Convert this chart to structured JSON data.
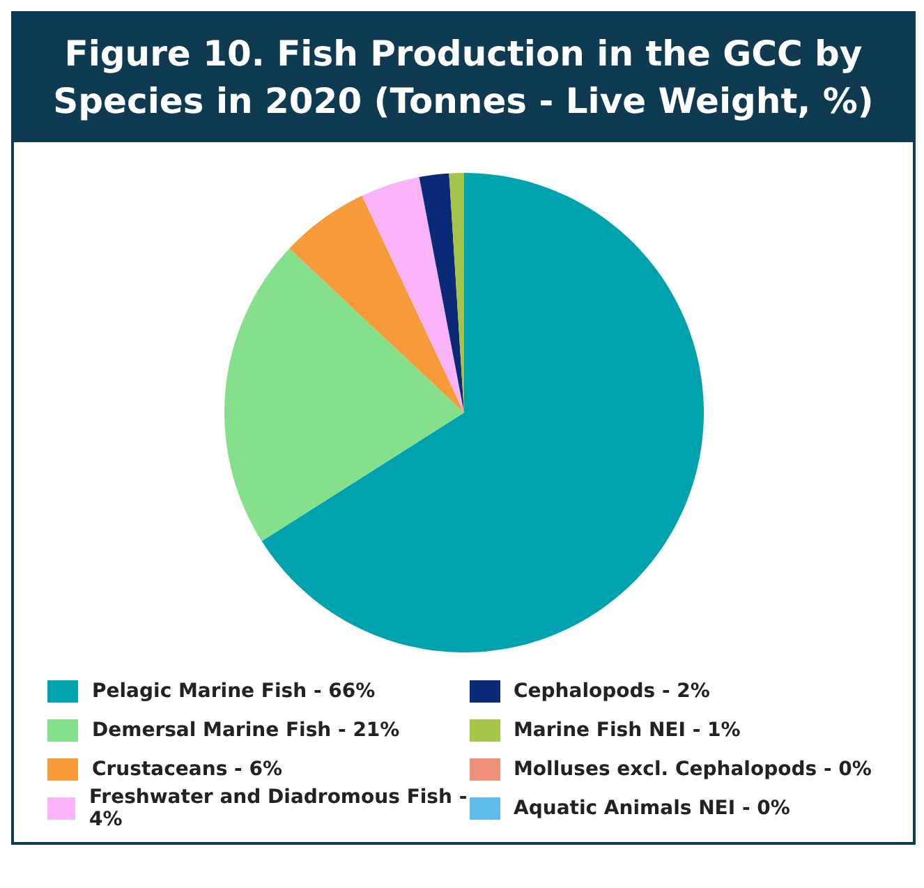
{
  "chart_data": {
    "type": "pie",
    "title": "Figure 10. Fish Production in the GCC by Species in 2020 (Tonnes - Live Weight, %)",
    "categories": [
      "Pelagic Marine Fish - 66%",
      "Demersal Marine Fish - 21%",
      "Crustaceans - 6%",
      "Freshwater and Diadromous Fish - 4%",
      "Cephalopods - 2%",
      "Marine Fish NEI - 1%",
      "Molluses excl. Cephalopods - 0%",
      "Aquatic Animals NEI - 0%"
    ],
    "values": [
      66,
      21,
      6,
      4,
      2,
      1,
      0,
      0
    ],
    "colors": [
      "#00a3ad",
      "#84e08a",
      "#f79a3a",
      "#f9b4f7",
      "#0a2a78",
      "#a6c447",
      "#f0917a",
      "#5bbde8"
    ],
    "legend": "bottom"
  }
}
